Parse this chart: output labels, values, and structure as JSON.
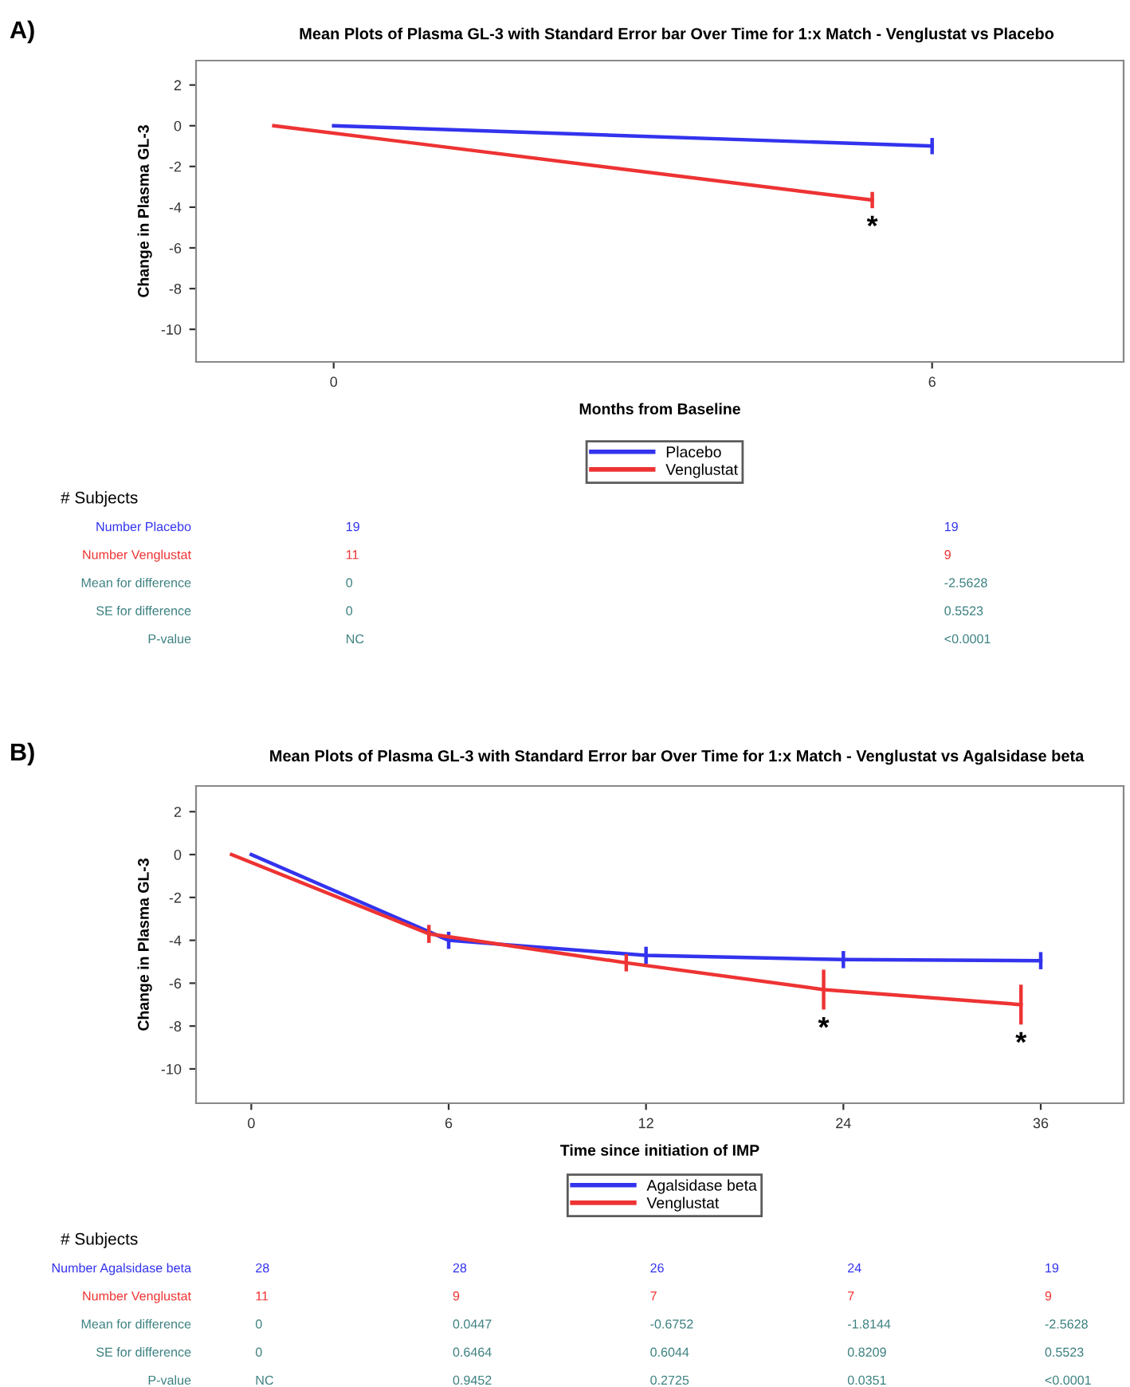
{
  "chart_data": [
    {
      "type": "line",
      "title": "Mean Plots of Plasma GL-3 with Standard Error bar Over Time for 1:x Match - Venglustat vs Placebo",
      "xlabel": "Months from Baseline",
      "ylabel": "Change in Plasma GL-3",
      "categories": [
        "0",
        "6"
      ],
      "series": [
        {
          "name": "Placebo",
          "color": "#3333ee",
          "values": [
            0,
            -1.0
          ],
          "errors": [
            null,
            0.4
          ]
        },
        {
          "name": "Venglustat",
          "color": "#ee3333",
          "values": [
            0,
            -3.65
          ],
          "errors": [
            null,
            0.4
          ]
        }
      ],
      "ylim": [
        -11.6,
        3.2
      ],
      "yticks": [
        -10,
        -8,
        -6,
        -4,
        -2,
        0,
        2
      ],
      "grid": false,
      "legend": "bottom",
      "marker": "none",
      "line_style": "solid",
      "annotations": [
        "A)",
        "# Subjects",
        "Number Placebo",
        "19",
        "19",
        "Number Venglustat",
        "11",
        "9",
        "Mean for difference",
        "0",
        "-2.5628",
        "SE for difference",
        "0",
        "0.5523",
        "P-value",
        "NC",
        "<0.0001",
        "*"
      ]
    },
    {
      "type": "line",
      "title": "Mean Plots of Plasma GL-3 with Standard Error bar Over Time for 1:x Match - Venglustat vs Agalsidase beta",
      "xlabel": "Time since initiation of IMP",
      "ylabel": "Change in Plasma GL-3",
      "categories": [
        "0",
        "6",
        "12",
        "24",
        "36"
      ],
      "series": [
        {
          "name": "Agalsidase beta",
          "color": "#3333ee",
          "values": [
            0,
            -4.0,
            -4.7,
            -4.9,
            -4.95
          ],
          "errors": [
            null,
            0.4,
            0.4,
            0.4,
            0.4
          ]
        },
        {
          "name": "Venglustat",
          "color": "#ee3333",
          "values": [
            0,
            -3.7,
            -5.05,
            -6.3,
            -7.0
          ],
          "errors": [
            null,
            0.42,
            0.4,
            0.93,
            0.93
          ]
        }
      ],
      "ylim": [
        -11.6,
        3.2
      ],
      "yticks": [
        -10,
        -8,
        -6,
        -4,
        -2,
        0,
        2
      ],
      "grid": false,
      "legend": "bottom",
      "marker": "none",
      "line_style": "solid",
      "annotations": [
        "B)",
        "# Subjects",
        "Number Agalsidase beta",
        "28",
        "28",
        "26",
        "24",
        "19",
        "Number Venglustat",
        "11",
        "9",
        "7",
        "7",
        "9",
        "Mean for difference",
        "0",
        "0.0447",
        "-0.6752",
        "-1.8144",
        "-2.5628",
        "SE for difference",
        "0",
        "0.6464",
        "0.6044",
        "0.8209",
        "0.5523",
        "P-value",
        "NC",
        "0.9452",
        "0.2725",
        "0.0351",
        "<0.0001",
        "*",
        "*"
      ]
    }
  ]
}
